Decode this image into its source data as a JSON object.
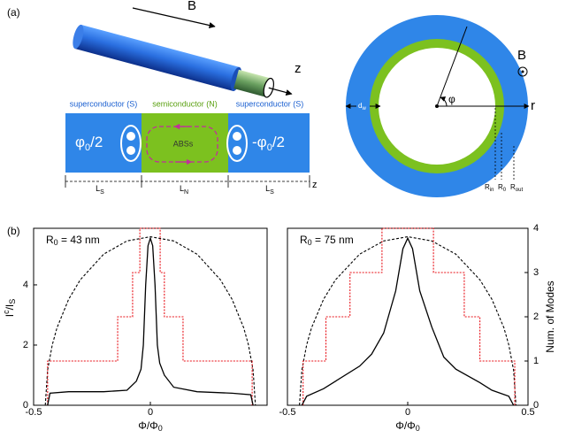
{
  "panel_a": {
    "label": "(a)",
    "field": "B",
    "axis": "z",
    "regions": [
      "superconductor (S)",
      "semiconductor (N)",
      "superconductor (S)"
    ],
    "phase_left": [
      "φ",
      "0",
      "/2"
    ],
    "abs": "ABSs",
    "phase_right": [
      "-φ",
      "0",
      "/2"
    ],
    "lengths": [
      [
        "L",
        "S"
      ],
      [
        "L",
        "N"
      ],
      [
        "L",
        "S"
      ]
    ],
    "length_axis": "z",
    "angle": "φ",
    "radial": "r",
    "field2": "B",
    "wall": [
      "d",
      "w"
    ],
    "radii": [
      [
        "R",
        "in"
      ],
      [
        "R",
        "0"
      ],
      [
        "R",
        "out"
      ]
    ]
  },
  "panel_b": {
    "label": "(b)"
  },
  "chart_data": [
    {
      "type": "line",
      "annotation": [
        "R",
        "0",
        " = 43 nm"
      ],
      "xlabel": [
        "Φ/Φ",
        "0"
      ],
      "ylabel": [
        "I",
        "c",
        "/I",
        "S"
      ],
      "xlim": [
        -0.5,
        0.5
      ],
      "xticks": [
        -0.5,
        0
      ],
      "ylim": [
        0,
        5.88
      ],
      "yticks": [
        0,
        2,
        4
      ],
      "y2lim": [
        0,
        4
      ],
      "series": [
        {
          "x": [
            -0.45,
            -0.44,
            -0.42,
            -0.4,
            -0.35,
            -0.3,
            -0.2,
            -0.1,
            0,
            0.1,
            0.2,
            0.3,
            0.35,
            0.4,
            0.42,
            0.44,
            0.45
          ],
          "values": [
            0,
            1.17,
            2.01,
            2.57,
            3.52,
            4.17,
            5.02,
            5.46,
            5.6,
            5.46,
            5.02,
            4.17,
            3.52,
            2.57,
            2.01,
            1.17,
            0
          ],
          "color": "#000000",
          "style": "dashed"
        },
        {
          "x": [
            -0.44,
            -0.44,
            -0.14,
            -0.076,
            -0.045,
            0.042,
            0.06,
            0.14,
            0.436
          ],
          "values": [
            0,
            1,
            2,
            3,
            4,
            3,
            2,
            1,
            0
          ],
          "color": "#e8141b",
          "style": "dotted",
          "step": true,
          "axis": "y2"
        },
        {
          "x": [
            -0.44,
            -0.43,
            -0.35,
            -0.2,
            -0.1,
            -0.06,
            -0.04,
            -0.03,
            -0.02,
            -0.01,
            0,
            0.01,
            0.02,
            0.03,
            0.04,
            0.06,
            0.1,
            0.2,
            0.35,
            0.43,
            0.44
          ],
          "values": [
            0,
            0.4,
            0.45,
            0.45,
            0.5,
            0.8,
            1.2,
            2,
            4,
            5.3,
            5.55,
            5.3,
            4,
            2,
            1.4,
            1.0,
            0.6,
            0.45,
            0.4,
            0.35,
            0
          ],
          "color": "#000000",
          "style": "solid"
        }
      ]
    },
    {
      "type": "line",
      "annotation": [
        "R",
        "0",
        " = 75 nm"
      ],
      "xlabel": [
        "Φ/Φ",
        "0"
      ],
      "y2label": "Num. of Modes",
      "xlim": [
        -0.5,
        0.5
      ],
      "xticks": [
        -0.5,
        0,
        0.5
      ],
      "ylim": [
        0,
        5.88
      ],
      "y2lim": [
        0,
        4
      ],
      "y2ticks": [
        0,
        1,
        2,
        3,
        4
      ],
      "series": [
        {
          "x": [
            -0.45,
            -0.44,
            -0.42,
            -0.4,
            -0.35,
            -0.3,
            -0.2,
            -0.1,
            0,
            0.1,
            0.2,
            0.3,
            0.35,
            0.4,
            0.42,
            0.44,
            0.45
          ],
          "values": [
            0,
            1.17,
            2.01,
            2.57,
            3.52,
            4.17,
            5.02,
            5.46,
            5.6,
            5.46,
            5.02,
            4.17,
            3.52,
            2.57,
            2.01,
            1.17,
            0
          ],
          "color": "#000000",
          "style": "dashed"
        },
        {
          "x": [
            -0.435,
            -0.435,
            -0.34,
            -0.24,
            -0.107,
            0.107,
            0.235,
            0.3,
            0.445
          ],
          "values": [
            0,
            1,
            2,
            3,
            4,
            3,
            2,
            1,
            0
          ],
          "color": "#e8141b",
          "style": "dotted",
          "step": true,
          "axis": "y2"
        },
        {
          "x": [
            -0.44,
            -0.42,
            -0.35,
            -0.3,
            -0.2,
            -0.15,
            -0.1,
            -0.05,
            -0.02,
            0,
            0.02,
            0.05,
            0.1,
            0.15,
            0.2,
            0.3,
            0.35,
            0.42,
            0.44
          ],
          "values": [
            0,
            0.3,
            0.55,
            0.8,
            1.3,
            1.7,
            2.4,
            3.8,
            5.2,
            5.55,
            5.2,
            3.8,
            2.6,
            1.6,
            1.2,
            0.75,
            0.5,
            0.3,
            0
          ],
          "color": "#000000",
          "style": "solid"
        }
      ]
    }
  ]
}
